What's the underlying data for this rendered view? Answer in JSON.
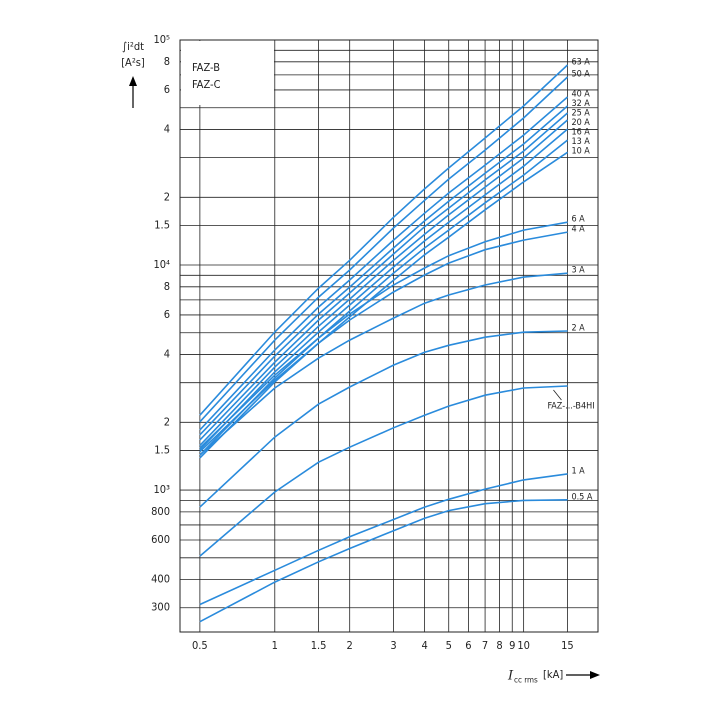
{
  "chart_data": {
    "type": "line",
    "ylabel": [
      "∫i²dt",
      "[A²s]"
    ],
    "xlabel": "I",
    "xlabel_sub": "cc rms",
    "xunit": "[kA]",
    "annotations": [
      "FAZ-B",
      "FAZ-C"
    ],
    "log_x": true,
    "log_y": true,
    "grid": true,
    "color": "#2a8bdc",
    "xlim": [
      0.416,
      19.9
    ],
    "ylim": [
      234,
      100000
    ],
    "xticks": [
      0.5,
      1,
      1.5,
      2,
      3,
      4,
      5,
      6,
      7,
      8,
      9,
      10,
      15
    ],
    "yticks": [
      300,
      400,
      600,
      800,
      {
        "value": 1000,
        "label": "10³"
      },
      {
        "value": 1500,
        "label": "1.5"
      },
      {
        "value": 2000,
        "label": "2"
      },
      {
        "value": 4000,
        "label": "4"
      },
      {
        "value": 6000,
        "label": "6"
      },
      {
        "value": 8000,
        "label": "8"
      },
      {
        "value": 10000,
        "label": "10⁴"
      },
      {
        "value": 15000,
        "label": "1.5"
      },
      {
        "value": 20000,
        "label": "2"
      },
      {
        "value": 40000,
        "label": "4"
      },
      {
        "value": 60000,
        "label": "6"
      },
      {
        "value": 80000,
        "label": "8"
      },
      {
        "value": 100000,
        "label": "10⁵"
      }
    ],
    "ygrid_extra": [
      500,
      700,
      900,
      3000,
      5000,
      7000,
      9000,
      30000,
      50000,
      70000,
      90000
    ],
    "x": [
      0.5,
      1,
      1.5,
      2,
      3,
      4,
      5,
      7,
      10,
      15
    ],
    "series": [
      {
        "name": "63 A",
        "values": [
          2150,
          5040,
          7900,
          10500,
          16300,
          21800,
          27000,
          36700,
          50900,
          77400
        ]
      },
      {
        "name": "50 A",
        "values": [
          2010,
          4640,
          7200,
          9500,
          14600,
          19400,
          24100,
          32400,
          45000,
          68500
        ]
      },
      {
        "name": "40 A",
        "values": [
          1850,
          4190,
          6510,
          8580,
          12900,
          17000,
          20900,
          27800,
          37800,
          55800
        ]
      },
      {
        "name": "32 A",
        "values": [
          1760,
          3940,
          6060,
          7980,
          11900,
          15700,
          19200,
          25600,
          34500,
          50900
        ]
      },
      {
        "name": "25 A",
        "values": [
          1670,
          3700,
          5700,
          7510,
          11200,
          14800,
          17900,
          23900,
          32100,
          47400
        ]
      },
      {
        "name": "20 A",
        "values": [
          1580,
          3520,
          5350,
          7060,
          10500,
          13700,
          16700,
          22200,
          29900,
          44100
        ]
      },
      {
        "name": "16 A",
        "values": [
          1510,
          3350,
          5040,
          6640,
          9800,
          12800,
          15500,
          20500,
          27500,
          40200
        ]
      },
      {
        "name": "13 A",
        "values": [
          1430,
          3150,
          4740,
          6250,
          9210,
          11900,
          14300,
          18900,
          25100,
          35900
        ]
      },
      {
        "name": "10 A",
        "values": [
          1390,
          3020,
          4500,
          5880,
          8560,
          11100,
          13300,
          17600,
          23400,
          31700
        ]
      },
      {
        "name": "6 A",
        "values": [
          1540,
          3240,
          4740,
          6060,
          8150,
          9700,
          11000,
          12700,
          14300,
          15500
        ]
      },
      {
        "name": "4 A",
        "values": [
          1480,
          3080,
          4500,
          5700,
          7590,
          9030,
          10200,
          11700,
          12900,
          14000
        ]
      },
      {
        "name": "3 A",
        "values": [
          1430,
          2840,
          3860,
          4640,
          5810,
          6770,
          7360,
          8150,
          8840,
          9200
        ]
      },
      {
        "name": "2 A",
        "values": [
          840,
          1720,
          2410,
          2870,
          3590,
          4100,
          4400,
          4780,
          5030,
          5090
        ]
      },
      {
        "name": "FAZ-...-B4HI",
        "values": [
          509,
          980,
          1330,
          1550,
          1890,
          2150,
          2360,
          2640,
          2840,
          2900
        ]
      },
      {
        "name": "1 A",
        "values": [
          310,
          440,
          540,
          620,
          740,
          840,
          910,
          1010,
          1110,
          1180
        ]
      },
      {
        "name": "0.5 A",
        "values": [
          260,
          390,
          480,
          550,
          660,
          750,
          810,
          870,
          900,
          905
        ]
      }
    ]
  }
}
